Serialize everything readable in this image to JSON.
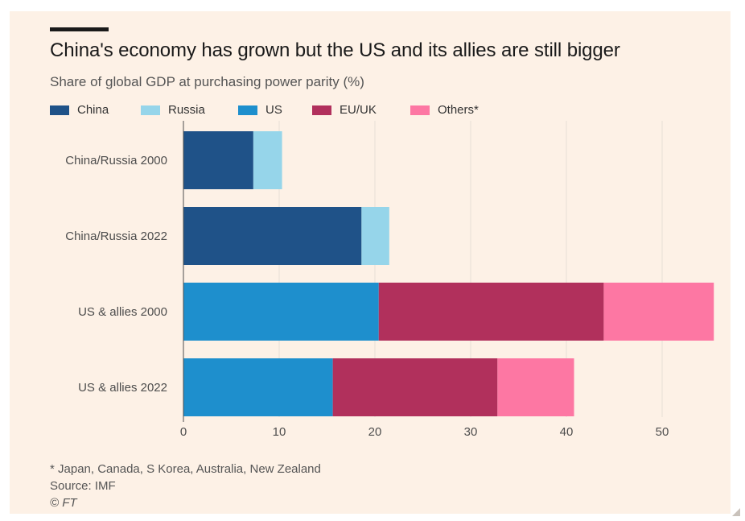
{
  "header": {
    "title": "China's economy has grown but the US and its allies are still bigger",
    "subtitle": "Share of global GDP at purchasing power parity (%)"
  },
  "colors": {
    "background": "#fdf1e6",
    "gridline": "#e8dfd6",
    "axis": "#4d4d4d"
  },
  "legend": [
    {
      "label": "China",
      "color": "#1f5288"
    },
    {
      "label": "Russia",
      "color": "#96d5ea"
    },
    {
      "label": "US",
      "color": "#1e8fcd"
    },
    {
      "label": "EU/UK",
      "color": "#b1305c"
    },
    {
      "label": "Others*",
      "color": "#fd77a3"
    }
  ],
  "chart_data": {
    "type": "bar",
    "orientation": "horizontal",
    "stacked": true,
    "categories": [
      "China/Russia 2000",
      "China/Russia 2022",
      "US & allies 2000",
      "US & allies 2022"
    ],
    "series": [
      {
        "name": "China",
        "color": "#1f5288",
        "values": [
          7.3,
          18.6,
          0,
          0
        ]
      },
      {
        "name": "Russia",
        "color": "#96d5ea",
        "values": [
          3.0,
          2.9,
          0,
          0
        ]
      },
      {
        "name": "US",
        "color": "#1e8fcd",
        "values": [
          0,
          0,
          20.4,
          15.6
        ]
      },
      {
        "name": "EU/UK",
        "color": "#b1305c",
        "values": [
          0,
          0,
          23.5,
          17.2
        ]
      },
      {
        "name": "Others*",
        "color": "#fd77a3",
        "values": [
          0,
          0,
          11.5,
          8.0
        ]
      }
    ],
    "xlim": [
      0,
      55
    ],
    "xticks": [
      0,
      10,
      20,
      30,
      40,
      50
    ],
    "grid": true,
    "legend_position": "top-left"
  },
  "footer": {
    "note": "* Japan, Canada, S Korea, Australia, New Zealand",
    "source": "Source: IMF",
    "copyright": "© FT"
  }
}
